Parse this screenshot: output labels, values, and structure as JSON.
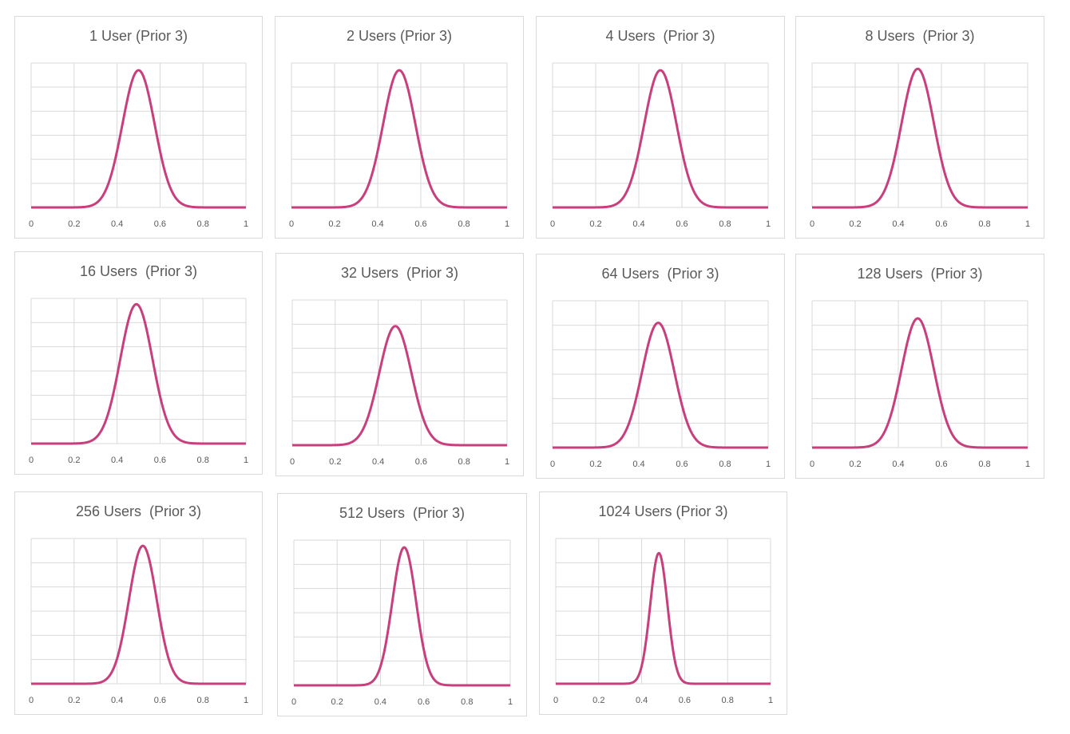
{
  "style": {
    "line_color": "#c83f7d",
    "grid_color": "#d9d9d9",
    "tick_color": "#595959",
    "title_color": "#595959"
  },
  "chart_data": [
    {
      "type": "line",
      "title": "1 User (Prior 3)",
      "xlim": [
        0,
        1
      ],
      "xticks": [
        "0",
        "0.2",
        "0.4",
        "0.6",
        "0.8",
        "1"
      ],
      "grid": true,
      "y_tick_labels_shown": false,
      "curve": {
        "shape": "normal",
        "mean": 0.5,
        "sd": 0.075,
        "peak_fraction": 0.95
      }
    },
    {
      "type": "line",
      "title": "2 Users (Prior 3)",
      "xlim": [
        0,
        1
      ],
      "xticks": [
        "0",
        "0.2",
        "0.4",
        "0.6",
        "0.8",
        "1"
      ],
      "grid": true,
      "y_tick_labels_shown": false,
      "curve": {
        "shape": "normal",
        "mean": 0.5,
        "sd": 0.075,
        "peak_fraction": 0.95
      }
    },
    {
      "type": "line",
      "title": "4 Users  (Prior 3)",
      "xlim": [
        0,
        1
      ],
      "xticks": [
        "0",
        "0.2",
        "0.4",
        "0.6",
        "0.8",
        "1"
      ],
      "grid": true,
      "y_tick_labels_shown": false,
      "curve": {
        "shape": "normal",
        "mean": 0.5,
        "sd": 0.075,
        "peak_fraction": 0.95
      }
    },
    {
      "type": "line",
      "title": "8 Users  (Prior 3)",
      "xlim": [
        0,
        1
      ],
      "xticks": [
        "0",
        "0.2",
        "0.4",
        "0.6",
        "0.8",
        "1"
      ],
      "grid": true,
      "y_tick_labels_shown": false,
      "curve": {
        "shape": "normal",
        "mean": 0.49,
        "sd": 0.075,
        "peak_fraction": 0.96
      }
    },
    {
      "type": "line",
      "title": "16 Users  (Prior 3)",
      "xlim": [
        0,
        1
      ],
      "xticks": [
        "0",
        "0.2",
        "0.4",
        "0.6",
        "0.8",
        "1"
      ],
      "grid": true,
      "y_tick_labels_shown": false,
      "curve": {
        "shape": "normal",
        "mean": 0.49,
        "sd": 0.075,
        "peak_fraction": 0.96
      }
    },
    {
      "type": "line",
      "title": "32 Users  (Prior 3)",
      "xlim": [
        0,
        1
      ],
      "xticks": [
        "0",
        "0.2",
        "0.4",
        "0.6",
        "0.8",
        "1"
      ],
      "grid": true,
      "y_tick_labels_shown": false,
      "curve": {
        "shape": "normal",
        "mean": 0.48,
        "sd": 0.075,
        "peak_fraction": 0.82
      }
    },
    {
      "type": "line",
      "title": "64 Users  (Prior 3)",
      "xlim": [
        0,
        1
      ],
      "xticks": [
        "0",
        "0.2",
        "0.4",
        "0.6",
        "0.8",
        "1"
      ],
      "grid": true,
      "y_tick_labels_shown": false,
      "curve": {
        "shape": "normal",
        "mean": 0.49,
        "sd": 0.075,
        "peak_fraction": 0.85
      }
    },
    {
      "type": "line",
      "title": "128 Users  (Prior 3)",
      "xlim": [
        0,
        1
      ],
      "xticks": [
        "0",
        "0.2",
        "0.4",
        "0.6",
        "0.8",
        "1"
      ],
      "grid": true,
      "y_tick_labels_shown": false,
      "curve": {
        "shape": "normal",
        "mean": 0.49,
        "sd": 0.075,
        "peak_fraction": 0.88
      }
    },
    {
      "type": "line",
      "title": "256 Users  (Prior 3)",
      "xlim": [
        0,
        1
      ],
      "xticks": [
        "0",
        "0.2",
        "0.4",
        "0.6",
        "0.8",
        "1"
      ],
      "grid": true,
      "y_tick_labels_shown": false,
      "curve": {
        "shape": "normal",
        "mean": 0.52,
        "sd": 0.065,
        "peak_fraction": 0.95
      }
    },
    {
      "type": "line",
      "title": "512 Users  (Prior 3)",
      "xlim": [
        0,
        1
      ],
      "xticks": [
        "0",
        "0.2",
        "0.4",
        "0.6",
        "0.8",
        "1"
      ],
      "grid": true,
      "y_tick_labels_shown": false,
      "curve": {
        "shape": "normal",
        "mean": 0.51,
        "sd": 0.055,
        "peak_fraction": 0.95
      }
    },
    {
      "type": "line",
      "title": "1024 Users (Prior 3)",
      "xlim": [
        0,
        1
      ],
      "xticks": [
        "0",
        "0.2",
        "0.4",
        "0.6",
        "0.8",
        "1"
      ],
      "grid": true,
      "y_tick_labels_shown": false,
      "curve": {
        "shape": "normal",
        "mean": 0.48,
        "sd": 0.04,
        "peak_fraction": 0.9
      }
    }
  ]
}
